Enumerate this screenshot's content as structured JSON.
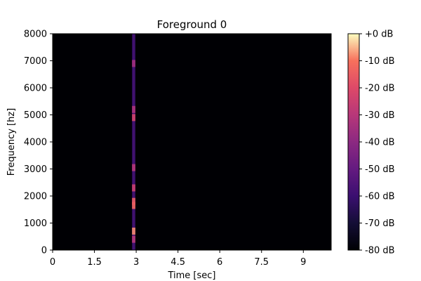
{
  "chart_data": {
    "type": "heatmap",
    "title": "Foreground 0",
    "xlabel": "Time [sec]",
    "ylabel": "Frequency [hz]",
    "xlim": [
      0,
      10
    ],
    "ylim": [
      0,
      8000
    ],
    "x_ticks": [
      {
        "value": 0,
        "label": "0"
      },
      {
        "value": 1.5,
        "label": "1.5"
      },
      {
        "value": 3,
        "label": "3"
      },
      {
        "value": 4.5,
        "label": "4.5"
      },
      {
        "value": 6,
        "label": "6"
      },
      {
        "value": 7.5,
        "label": "7.5"
      },
      {
        "value": 9,
        "label": "9"
      }
    ],
    "y_ticks": [
      {
        "value": 0,
        "label": "0"
      },
      {
        "value": 1000,
        "label": "1000"
      },
      {
        "value": 2000,
        "label": "2000"
      },
      {
        "value": 3000,
        "label": "3000"
      },
      {
        "value": 4000,
        "label": "4000"
      },
      {
        "value": 5000,
        "label": "5000"
      },
      {
        "value": 6000,
        "label": "6000"
      },
      {
        "value": 7000,
        "label": "7000"
      },
      {
        "value": 8000,
        "label": "8000"
      }
    ],
    "colorbar": {
      "range": [
        -80,
        0
      ],
      "colormap": "magma",
      "ticks": [
        {
          "value": 0,
          "label": "+0 dB"
        },
        {
          "value": -10,
          "label": "-10 dB"
        },
        {
          "value": -20,
          "label": "-20 dB"
        },
        {
          "value": -30,
          "label": "-30 dB"
        },
        {
          "value": -40,
          "label": "-40 dB"
        },
        {
          "value": -50,
          "label": "-50 dB"
        },
        {
          "value": -60,
          "label": "-60 dB"
        },
        {
          "value": -70,
          "label": "-70 dB"
        },
        {
          "value": -80,
          "label": "-80 dB"
        }
      ]
    },
    "background_db": -80,
    "event": {
      "t_start": 2.85,
      "t_end": 2.97
    },
    "hotspots": [
      {
        "freq": 700,
        "db": -8
      },
      {
        "freq": 1650,
        "db": -12
      },
      {
        "freq": 1800,
        "db": -15
      },
      {
        "freq": 2300,
        "db": -25
      },
      {
        "freq": 3050,
        "db": -30
      },
      {
        "freq": 4900,
        "db": -22
      },
      {
        "freq": 5200,
        "db": -32
      },
      {
        "freq": 6900,
        "db": -35
      },
      {
        "freq": 400,
        "db": -30
      }
    ]
  }
}
